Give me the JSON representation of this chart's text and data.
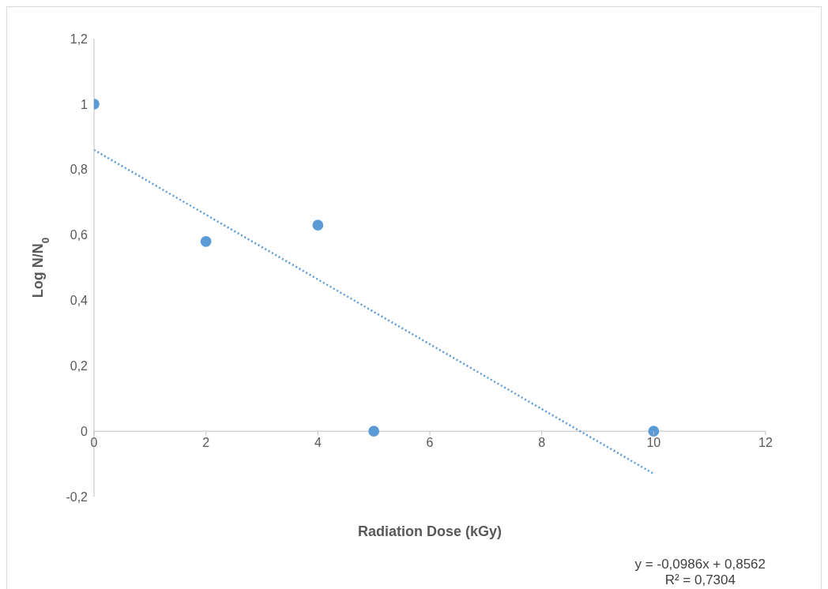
{
  "chart_data": {
    "type": "scatter",
    "xlabel": "Radiation Dose (kGy)",
    "ylabel": "Log N/N$_{0}$",
    "marker": "circle",
    "grid": false,
    "xlim": [
      0,
      12
    ],
    "xticks": [
      0,
      2,
      4,
      6,
      8,
      10,
      12
    ],
    "ylim": [
      -0.2,
      1.2
    ],
    "yticks": [
      {
        "value": -0.2,
        "label": "-0,2"
      },
      0,
      {
        "value": 0.2,
        "label": "0,2"
      },
      {
        "value": 0.4,
        "label": "0,4"
      },
      {
        "value": 0.6,
        "label": "0,6"
      },
      {
        "value": 0.8,
        "label": "0,8"
      },
      1,
      {
        "value": 1.2,
        "label": "1,2"
      }
    ],
    "series": [
      {
        "color": "#5b9bd5",
        "x": [
          0,
          2,
          4,
          5,
          10
        ],
        "values": [
          1,
          0.58,
          0.63,
          0,
          0
        ]
      },
      {
        "type": "line",
        "color": "#5b9bd5",
        "line_style": "dotted",
        "marker": "none",
        "x": [
          0,
          10
        ],
        "values": [
          0.86,
          -0.13
        ]
      }
    ],
    "annotations": [
      "y = -0,0986x + 0,8562",
      "R² = 0,7304"
    ]
  }
}
